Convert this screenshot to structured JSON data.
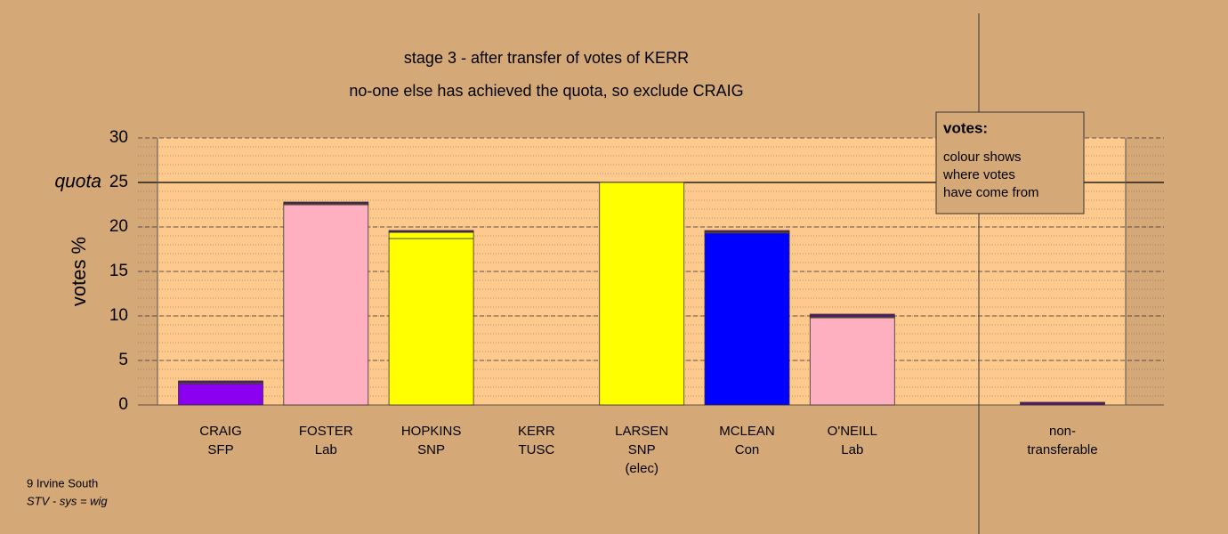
{
  "chart_data": {
    "type": "bar",
    "stacked": true,
    "title": "stage 3 - after transfer of votes of KERR",
    "subtitle": "no-one else has achieved the quota, so exclude CRAIG",
    "ylabel": "votes %",
    "categories": [
      [
        "CRAIG",
        "SFP"
      ],
      [
        "FOSTER",
        "Lab"
      ],
      [
        "HOPKINS",
        "SNP"
      ],
      [
        "KERR",
        "TUSC"
      ],
      [
        "LARSEN",
        "SNP",
        "(elec)"
      ],
      [
        "MCLEAN",
        "Con"
      ],
      [
        "O'NEILL",
        "Lab"
      ]
    ],
    "series": [
      {
        "colors": [
          "#8b00f0",
          "#ffb0c0",
          "#ffff00",
          "#5a1a6a",
          "#ffff00",
          "#0000ff",
          "#ffb0c0"
        ],
        "values": [
          2.4,
          22.5,
          18.7,
          0,
          25,
          19.3,
          9.8
        ]
      },
      {
        "color": "#ffff00",
        "values": [
          0.1,
          0.1,
          0.7,
          0,
          0,
          0.1,
          0.1
        ]
      },
      {
        "color": "#5a1a6a",
        "values": [
          0.2,
          0.2,
          0.2,
          0,
          0,
          0.2,
          0.3
        ]
      }
    ],
    "nontransferable": {
      "label": [
        "non-",
        "transferable"
      ],
      "value": 0.3,
      "color": "#5a1a6a"
    },
    "quota": {
      "label": "quota",
      "value": 25
    },
    "ylim": [
      0,
      30
    ],
    "yticks": [
      0,
      5,
      10,
      15,
      20,
      25,
      30
    ],
    "grid": true,
    "legend_box": {
      "title": "votes:",
      "lines": [
        "colour shows",
        "where votes",
        "have come from"
      ]
    },
    "footer": [
      "9 Irvine South",
      "STV - sys = wig"
    ]
  }
}
